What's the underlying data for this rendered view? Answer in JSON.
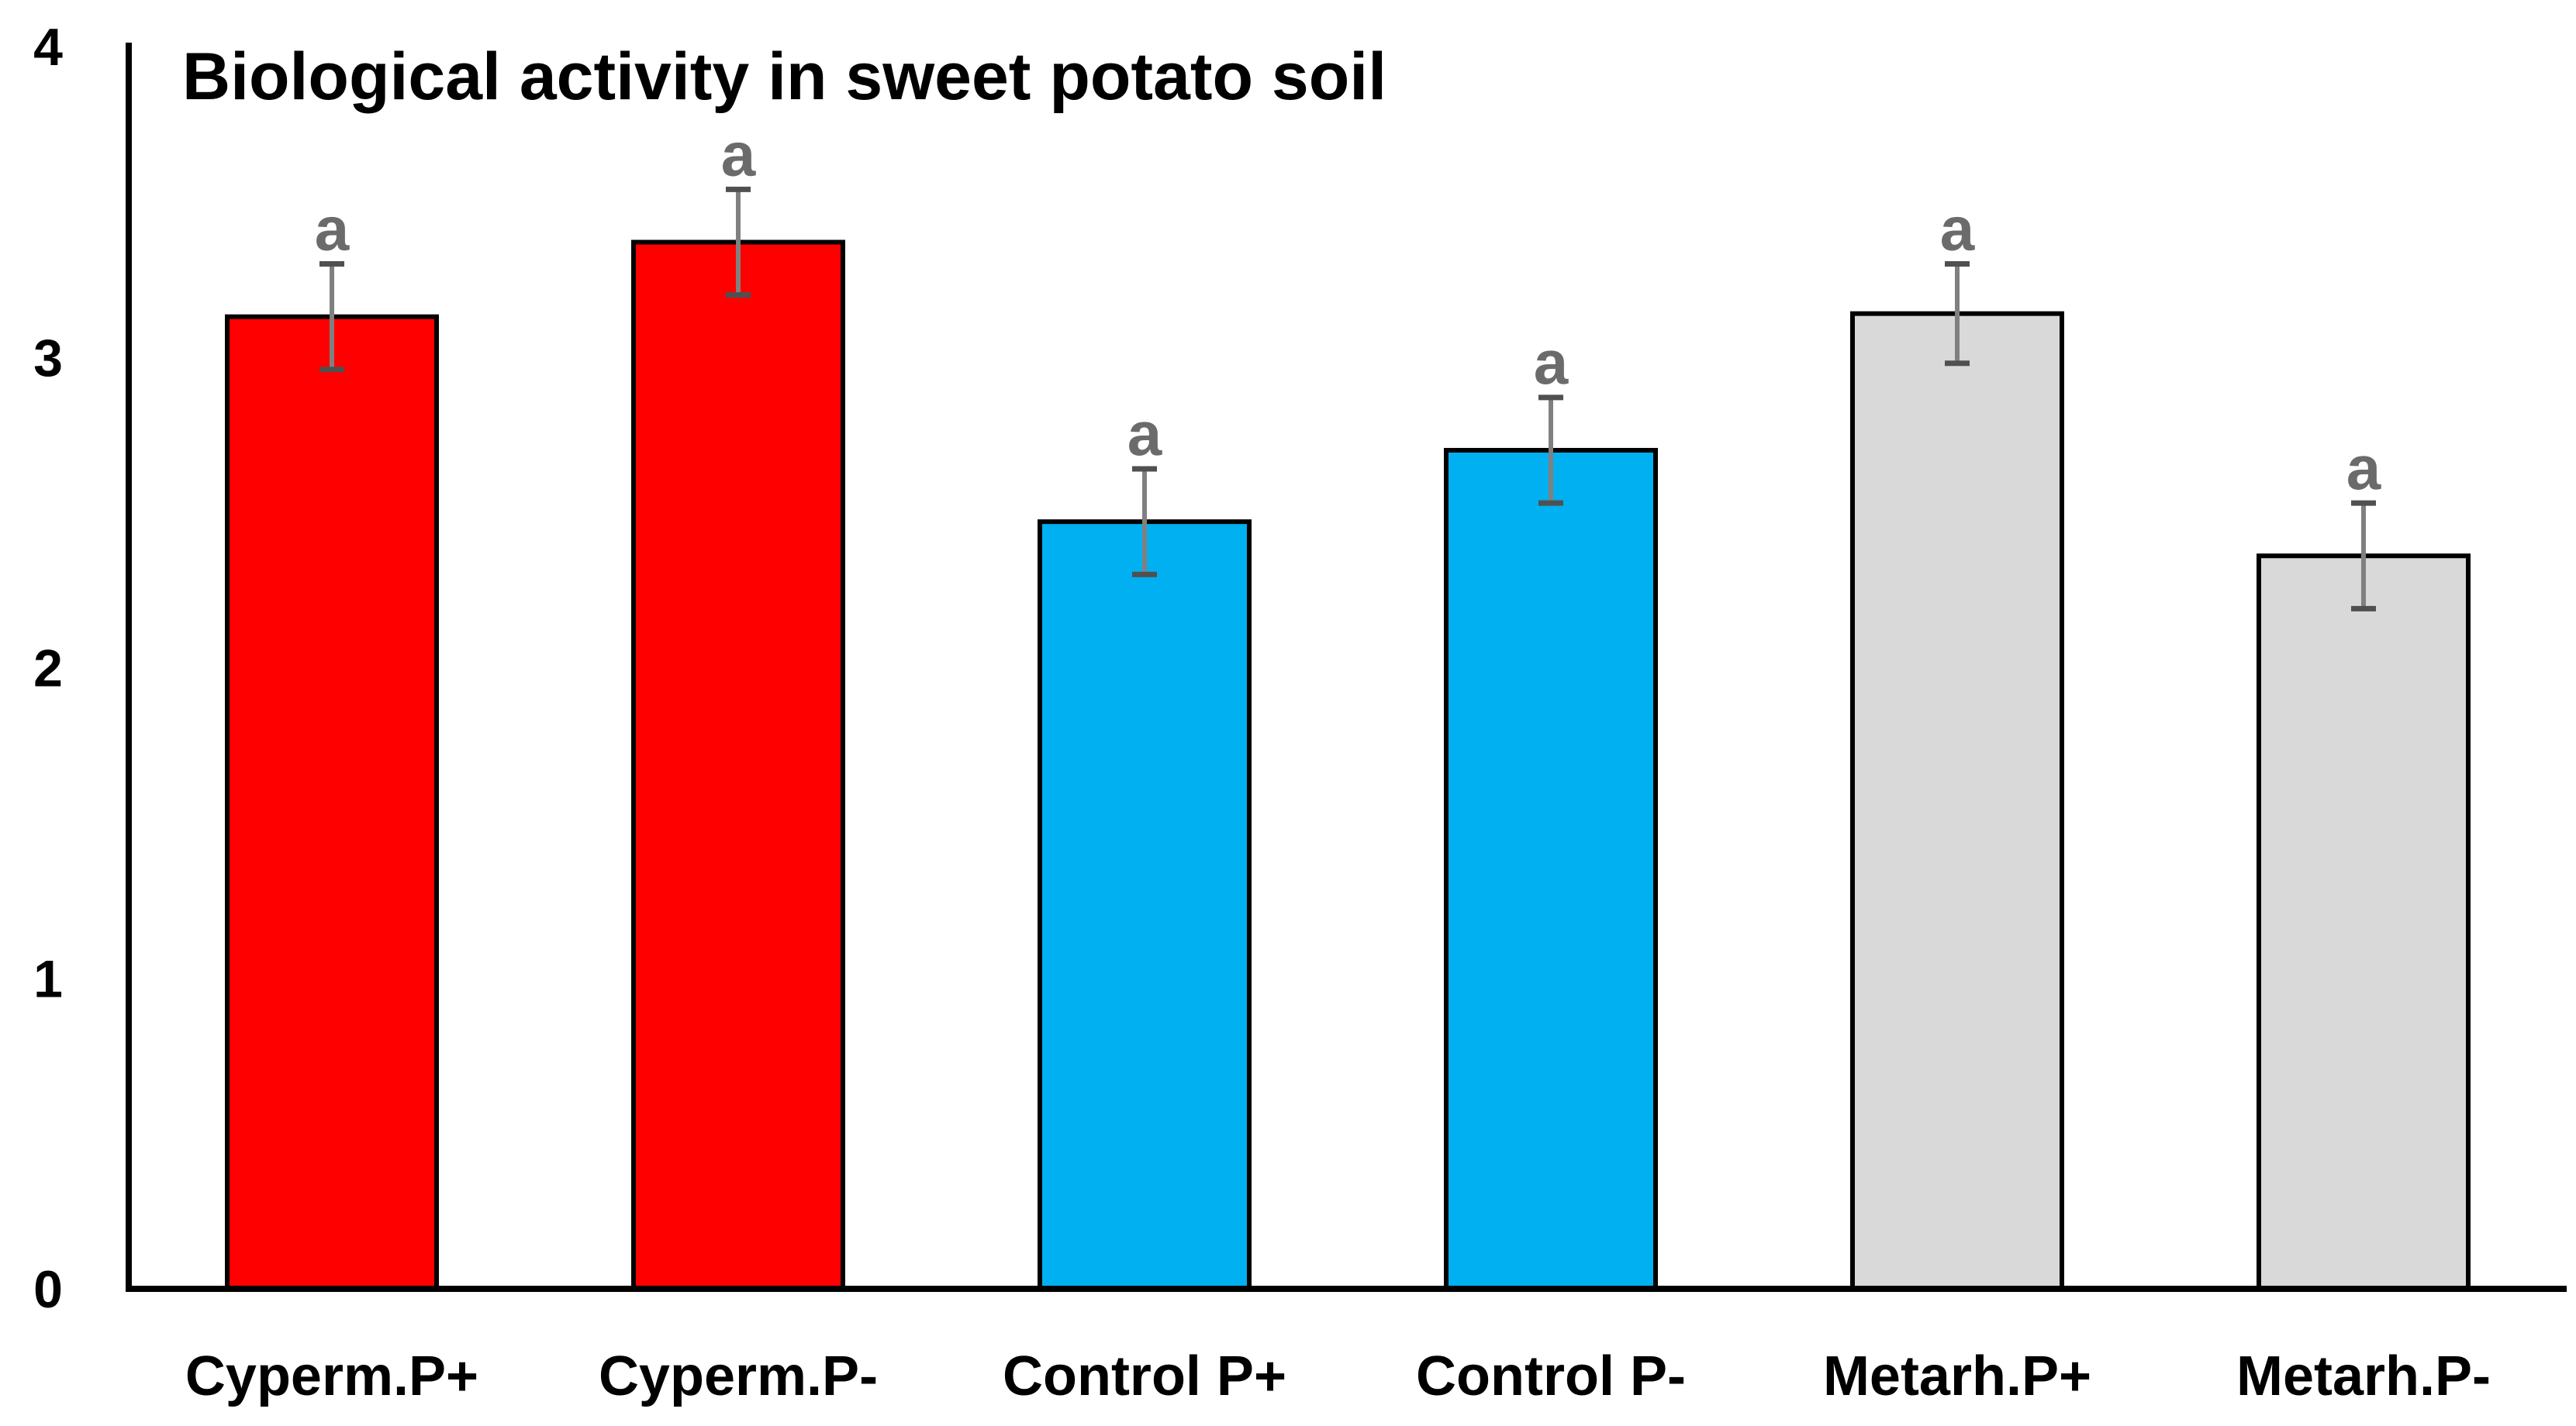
{
  "chart_data": {
    "type": "bar",
    "title": "Biological activity in sweet potato soil",
    "xlabel": "",
    "ylabel": "",
    "ylim": [
      0,
      4
    ],
    "yticks": [
      "0",
      "1",
      "2",
      "3",
      "4"
    ],
    "categories": [
      "Cyperm.P+",
      "Cyperm.P-",
      "Control P+",
      "Control P-",
      "Metarh.P+",
      "Metarh.P-"
    ],
    "values": [
      3.13,
      3.37,
      2.47,
      2.7,
      3.14,
      2.36
    ],
    "errors": [
      0.17,
      0.17,
      0.17,
      0.17,
      0.16,
      0.17
    ],
    "significance": [
      "a",
      "a",
      "a",
      "a",
      "a",
      "a"
    ],
    "colors": [
      "#ff0000",
      "#ff0000",
      "#00b0f0",
      "#00b0f0",
      "#d9d9d9",
      "#d9d9d9"
    ],
    "error_color": "#808080",
    "grid": false,
    "legend": "none"
  }
}
